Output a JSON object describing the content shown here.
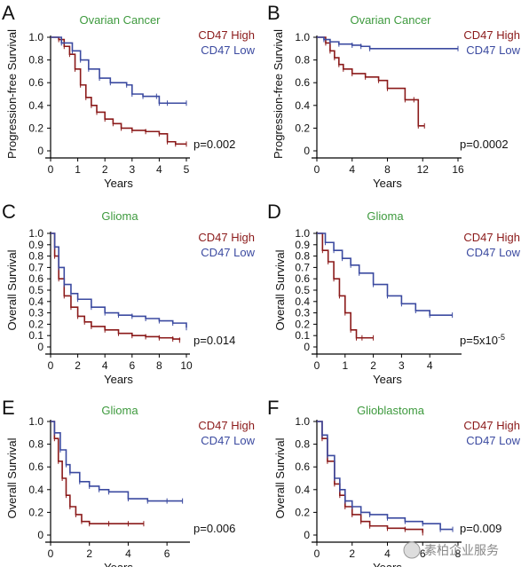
{
  "colors": {
    "high": "#8b1a1a",
    "low": "#3b4aa0",
    "title": "#3e9a3e",
    "axis": "#000000",
    "text": "#111111"
  },
  "watermark": "素柏企业服务",
  "chart_data": [
    {
      "panel": "A",
      "type": "line",
      "title": "Ovarian Cancer",
      "xlabel": "Years",
      "ylabel": "Progression-free Survival",
      "xlim": [
        0,
        5
      ],
      "ylim": [
        0,
        1
      ],
      "xticks": [
        0,
        1,
        2,
        3,
        4,
        5
      ],
      "yticks": [
        0,
        0.2,
        0.4,
        0.6,
        0.8,
        1.0
      ],
      "ytick_labels": [
        "0",
        "0.2",
        "0.4",
        "0.6",
        "0.8",
        "1.0"
      ],
      "pvalue": "p=0.002",
      "pvalue_sup": "",
      "legend_position": "top-right",
      "series": [
        {
          "name": "CD47 High",
          "color": "high",
          "x": [
            0,
            0.3,
            0.5,
            0.7,
            0.9,
            1.1,
            1.3,
            1.5,
            1.7,
            2.0,
            2.3,
            2.6,
            3.0,
            3.5,
            4.0,
            4.3,
            4.6,
            5.0
          ],
          "y": [
            1.0,
            0.98,
            0.92,
            0.85,
            0.72,
            0.58,
            0.47,
            0.4,
            0.34,
            0.28,
            0.24,
            0.2,
            0.18,
            0.17,
            0.15,
            0.08,
            0.06,
            0.06
          ]
        },
        {
          "name": "CD47 Low",
          "color": "low",
          "x": [
            0,
            0.4,
            0.8,
            1.1,
            1.4,
            1.8,
            2.2,
            2.8,
            3.0,
            3.4,
            3.9,
            4.0,
            4.3,
            5.0
          ],
          "y": [
            1.0,
            0.95,
            0.88,
            0.8,
            0.72,
            0.64,
            0.6,
            0.58,
            0.5,
            0.48,
            0.48,
            0.42,
            0.42,
            0.42
          ]
        }
      ]
    },
    {
      "panel": "B",
      "type": "line",
      "title": "Ovarian Cancer",
      "xlabel": "Years",
      "ylabel": "Progression-free Survival",
      "xlim": [
        0,
        16
      ],
      "ylim": [
        0,
        1
      ],
      "xticks": [
        0,
        4,
        8,
        12,
        16
      ],
      "yticks": [
        0,
        0.2,
        0.4,
        0.6,
        0.8,
        1.0
      ],
      "ytick_labels": [
        "0",
        "0.2",
        "0.4",
        "0.6",
        "0.8",
        "1.0"
      ],
      "pvalue": "p=0.0002",
      "pvalue_sup": "",
      "legend_position": "top-right",
      "series": [
        {
          "name": "CD47 High",
          "color": "high",
          "x": [
            0,
            1,
            1.5,
            2,
            2.5,
            3,
            4,
            5.5,
            7,
            8,
            10,
            11,
            11.5,
            12.2
          ],
          "y": [
            1.0,
            0.95,
            0.88,
            0.82,
            0.76,
            0.72,
            0.68,
            0.65,
            0.62,
            0.55,
            0.45,
            0.45,
            0.22,
            0.22
          ]
        },
        {
          "name": "CD47 Low",
          "color": "low",
          "x": [
            0,
            0.8,
            1.5,
            2.5,
            4,
            5,
            6,
            16
          ],
          "y": [
            1.0,
            0.98,
            0.96,
            0.94,
            0.93,
            0.92,
            0.9,
            0.9
          ]
        }
      ]
    },
    {
      "panel": "C",
      "type": "line",
      "title": "Glioma",
      "xlabel": "Years",
      "ylabel": "Overall Survival",
      "xlim": [
        0,
        10
      ],
      "ylim": [
        0,
        1
      ],
      "xticks": [
        0,
        2,
        4,
        6,
        8,
        10
      ],
      "yticks": [
        0,
        0.1,
        0.2,
        0.3,
        0.4,
        0.5,
        0.6,
        0.7,
        0.8,
        0.9,
        1.0
      ],
      "ytick_labels": [
        "0",
        "0.1",
        "0.2",
        "0.3",
        "0.4",
        "0.5",
        "0.6",
        "0.7",
        "0.8",
        "0.9",
        "1.0"
      ],
      "pvalue": "p=0.014",
      "pvalue_sup": "",
      "legend_position": "top-right",
      "series": [
        {
          "name": "CD47 High",
          "color": "high",
          "x": [
            0,
            0.3,
            0.6,
            1.0,
            1.5,
            2.0,
            2.5,
            3.0,
            4.0,
            5.0,
            6.0,
            7.0,
            8.0,
            9.0,
            9.5
          ],
          "y": [
            1.0,
            0.8,
            0.6,
            0.45,
            0.35,
            0.27,
            0.22,
            0.18,
            0.15,
            0.12,
            0.1,
            0.09,
            0.08,
            0.07,
            0.06
          ]
        },
        {
          "name": "CD47 Low",
          "color": "low",
          "x": [
            0,
            0.3,
            0.6,
            1.0,
            1.5,
            2.0,
            3.0,
            4.0,
            5.0,
            6.0,
            7.0,
            8.0,
            9.0,
            10.0
          ],
          "y": [
            1.0,
            0.88,
            0.7,
            0.55,
            0.47,
            0.42,
            0.35,
            0.3,
            0.28,
            0.27,
            0.25,
            0.23,
            0.21,
            0.17
          ]
        }
      ]
    },
    {
      "panel": "D",
      "type": "line",
      "title": "Glioma",
      "xlabel": "Years",
      "ylabel": "Overall Survival",
      "xlim": [
        0,
        5
      ],
      "ylim": [
        0,
        1
      ],
      "xticks": [
        0,
        1,
        2,
        3,
        4
      ],
      "yticks": [
        0,
        0.1,
        0.2,
        0.3,
        0.4,
        0.5,
        0.6,
        0.7,
        0.8,
        0.9,
        1.0
      ],
      "ytick_labels": [
        "0",
        "0.1",
        "0.2",
        "0.3",
        "0.4",
        "0.5",
        "0.6",
        "0.7",
        "0.8",
        "0.9",
        "1.0"
      ],
      "pvalue": "p=5x10",
      "pvalue_sup": "-5",
      "legend_position": "top-right",
      "series": [
        {
          "name": "CD47 High",
          "color": "high",
          "x": [
            0,
            0.2,
            0.4,
            0.6,
            0.8,
            1.0,
            1.2,
            1.4,
            1.6,
            2.0
          ],
          "y": [
            1.0,
            0.85,
            0.75,
            0.6,
            0.45,
            0.3,
            0.15,
            0.08,
            0.08,
            0.08
          ]
        },
        {
          "name": "CD47 Low",
          "color": "low",
          "x": [
            0,
            0.3,
            0.6,
            0.9,
            1.2,
            1.5,
            2.0,
            2.5,
            3.0,
            3.5,
            4.0,
            4.8
          ],
          "y": [
            1.0,
            0.92,
            0.85,
            0.78,
            0.72,
            0.65,
            0.55,
            0.45,
            0.38,
            0.32,
            0.28,
            0.28
          ]
        }
      ]
    },
    {
      "panel": "E",
      "type": "line",
      "title": "Glioma",
      "xlabel": "Years",
      "ylabel": "Overall Survival",
      "xlim": [
        0,
        7
      ],
      "ylim": [
        0,
        1
      ],
      "xticks": [
        0,
        2,
        4,
        6
      ],
      "yticks": [
        0,
        0.2,
        0.4,
        0.6,
        0.8,
        1.0
      ],
      "ytick_labels": [
        "0",
        "0.2",
        "0.4",
        "0.6",
        "0.8",
        "1.0"
      ],
      "pvalue": "p=0.006",
      "pvalue_sup": "",
      "legend_position": "top-right",
      "series": [
        {
          "name": "CD47 High",
          "color": "high",
          "x": [
            0,
            0.2,
            0.4,
            0.6,
            0.8,
            1.0,
            1.3,
            1.6,
            2.0,
            3.0,
            4.0,
            4.8
          ],
          "y": [
            1.0,
            0.85,
            0.65,
            0.5,
            0.35,
            0.25,
            0.18,
            0.12,
            0.1,
            0.1,
            0.1,
            0.1
          ]
        },
        {
          "name": "CD47 Low",
          "color": "low",
          "x": [
            0,
            0.2,
            0.5,
            0.8,
            1.0,
            1.5,
            2.0,
            2.5,
            3.0,
            4.0,
            5.0,
            6.0,
            6.8
          ],
          "y": [
            1.0,
            0.9,
            0.75,
            0.62,
            0.55,
            0.47,
            0.43,
            0.4,
            0.38,
            0.32,
            0.3,
            0.3,
            0.3
          ]
        }
      ]
    },
    {
      "panel": "F",
      "type": "line",
      "title": "Glioblastoma",
      "xlabel": "Years",
      "ylabel": "Overall Survival",
      "xlim": [
        0,
        8
      ],
      "ylim": [
        0,
        1
      ],
      "xticks": [
        0,
        2,
        4,
        6,
        8
      ],
      "yticks": [
        0,
        0.2,
        0.4,
        0.6,
        0.8,
        1.0
      ],
      "ytick_labels": [
        "0",
        "0.2",
        "0.4",
        "0.6",
        "0.8",
        "1.0"
      ],
      "pvalue": "p=0.009",
      "pvalue_sup": "",
      "legend_position": "top-right",
      "series": [
        {
          "name": "CD47 High",
          "color": "high",
          "x": [
            0,
            0.3,
            0.6,
            1.0,
            1.3,
            1.6,
            2.0,
            2.5,
            3.0,
            4.0,
            5.0,
            6.0
          ],
          "y": [
            1.0,
            0.85,
            0.65,
            0.45,
            0.35,
            0.25,
            0.18,
            0.12,
            0.08,
            0.06,
            0.05,
            0.02
          ]
        },
        {
          "name": "CD47 Low",
          "color": "low",
          "x": [
            0,
            0.3,
            0.6,
            1.0,
            1.3,
            1.6,
            2.0,
            2.5,
            3.0,
            4.0,
            5.0,
            6.0,
            7.0,
            7.7
          ],
          "y": [
            1.0,
            0.88,
            0.7,
            0.5,
            0.4,
            0.3,
            0.25,
            0.2,
            0.18,
            0.15,
            0.12,
            0.1,
            0.05,
            0.05
          ]
        }
      ]
    }
  ]
}
